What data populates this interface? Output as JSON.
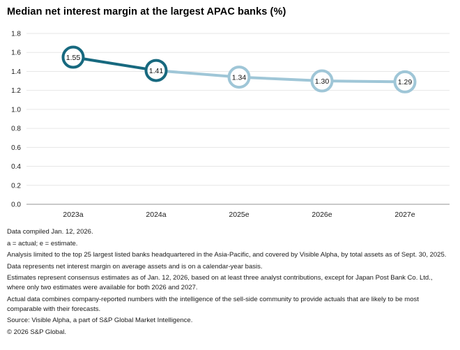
{
  "title": "Median net interest margin at the largest APAC banks (%)",
  "chart_data": {
    "type": "line",
    "title": "Median net interest margin at the largest APAC banks (%)",
    "categories": [
      "2023a",
      "2024a",
      "2025e",
      "2026e",
      "2027e"
    ],
    "values": [
      1.55,
      1.41,
      1.34,
      1.3,
      1.29
    ],
    "point_labels": [
      "1.55",
      "1.41",
      "1.34",
      "1.30",
      "1.29"
    ],
    "point_styles": [
      "actual",
      "actual",
      "estimate",
      "estimate",
      "estimate"
    ],
    "xlabel": "",
    "ylabel": "",
    "ylim": [
      0.0,
      1.8
    ],
    "y_ticks": [
      "1.8",
      "1.6",
      "1.4",
      "1.2",
      "1.0",
      "0.8",
      "0.6",
      "0.4",
      "0.2",
      "0.0"
    ],
    "y_tick_values": [
      1.8,
      1.6,
      1.4,
      1.2,
      1.0,
      0.8,
      0.6,
      0.4,
      0.2,
      0.0
    ],
    "grid": "on",
    "legend": "none",
    "colors": {
      "actual": "#17697F",
      "estimate": "#9FC6D7",
      "marker_fill": "#ffffff",
      "gridline": "#e6e6e6",
      "baseline": "#a9a9a9",
      "axis_text": "#1a1a1a",
      "point_label_text": "#111111"
    }
  },
  "footnotes": [
    "Data compiled Jan. 12, 2026.",
    "a = actual; e = estimate.",
    "Analysis limited to the top 25 largest listed banks headquartered in the Asia-Pacific, and covered by Visible Alpha, by total assets as of Sept. 30, 2025.",
    "Data represents net interest margin on average assets and is on a calendar-year basis.",
    "Estimates represent consensus estimates as of Jan. 12, 2026, based on at least three analyst contributions, except for Japan Post Bank Co. Ltd., where only two estimates were available for both 2026 and 2027.",
    "Actual data combines company-reported numbers with the intelligence of the sell-side community to provide actuals that are likely to be most comparable with their forecasts.",
    "Source: Visible Alpha, a part of S&P Global Market Intelligence.",
    "© 2026 S&P Global."
  ]
}
